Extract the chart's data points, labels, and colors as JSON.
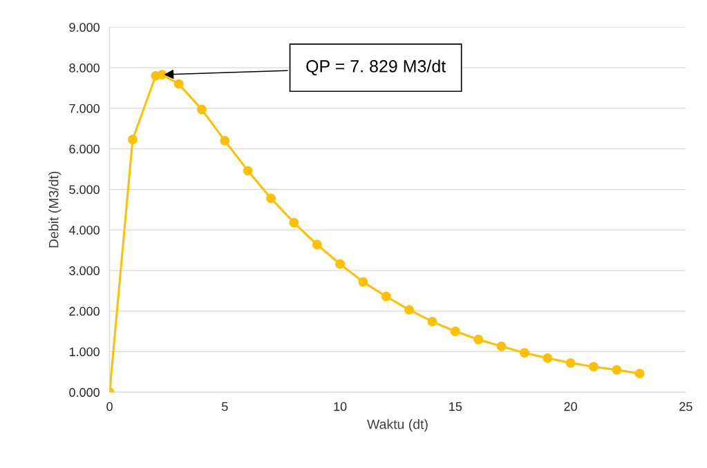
{
  "chart_data": {
    "type": "line",
    "xlabel": "Waktu (dt)",
    "ylabel": "Debit (M3/dt)",
    "x": [
      0,
      1,
      2,
      2.28,
      3,
      4,
      5,
      6,
      7,
      8,
      9,
      10,
      11,
      12,
      13,
      14,
      15,
      16,
      17,
      18,
      19,
      20,
      21,
      22,
      23
    ],
    "series": [
      {
        "color": "#ffc000",
        "values": [
          0,
          6.23,
          7.8,
          7.829,
          7.6,
          6.97,
          6.2,
          5.46,
          4.78,
          4.18,
          3.64,
          3.16,
          2.72,
          2.36,
          2.03,
          1.74,
          1.5,
          1.3,
          1.13,
          0.97,
          0.84,
          0.72,
          0.63,
          0.55,
          0.46
        ]
      }
    ],
    "xlim": [
      0,
      25
    ],
    "xticks": [
      0,
      5,
      10,
      15,
      20,
      25
    ],
    "ylim": [
      0,
      9
    ],
    "yticks": [
      {
        "value": 0,
        "label": "0.000"
      },
      {
        "value": 1,
        "label": "1.000"
      },
      {
        "value": 2,
        "label": "2.000"
      },
      {
        "value": 3,
        "label": "3.000"
      },
      {
        "value": 4,
        "label": "4.000"
      },
      {
        "value": 5,
        "label": "5.000"
      },
      {
        "value": 6,
        "label": "6.000"
      },
      {
        "value": 7,
        "label": "7.000"
      },
      {
        "value": 8,
        "label": "8.000"
      },
      {
        "value": 9,
        "label": "9.000"
      }
    ],
    "grid": "y",
    "marker": "circle",
    "line_style": "solid",
    "annotations": [
      {
        "text": "QP = 7. 829 M3/dt",
        "x": 2.28,
        "y": 7.829
      }
    ]
  }
}
